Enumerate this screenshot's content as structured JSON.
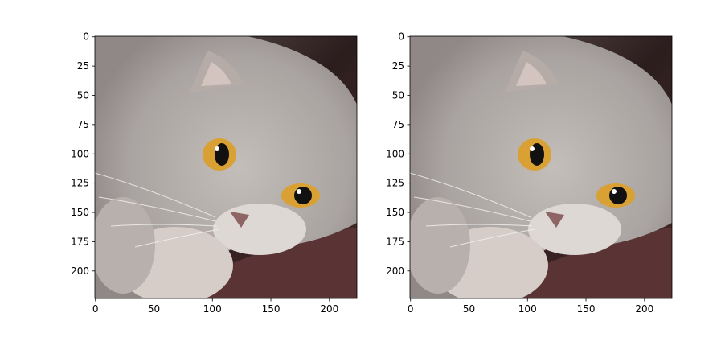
{
  "chart_data": [
    {
      "type": "image",
      "xlim": [
        -0.5,
        223.5
      ],
      "ylim": [
        223.5,
        -0.5
      ],
      "xticks": [
        0,
        50,
        100,
        150,
        200
      ],
      "yticks": [
        0,
        25,
        50,
        75,
        100,
        125,
        150,
        175,
        200
      ]
    },
    {
      "type": "image",
      "xlim": [
        -0.5,
        223.5
      ],
      "ylim": [
        223.5,
        -0.5
      ],
      "xticks": [
        0,
        50,
        100,
        150,
        200
      ],
      "yticks": [
        0,
        25,
        50,
        75,
        100,
        125,
        150,
        175,
        200
      ]
    }
  ]
}
